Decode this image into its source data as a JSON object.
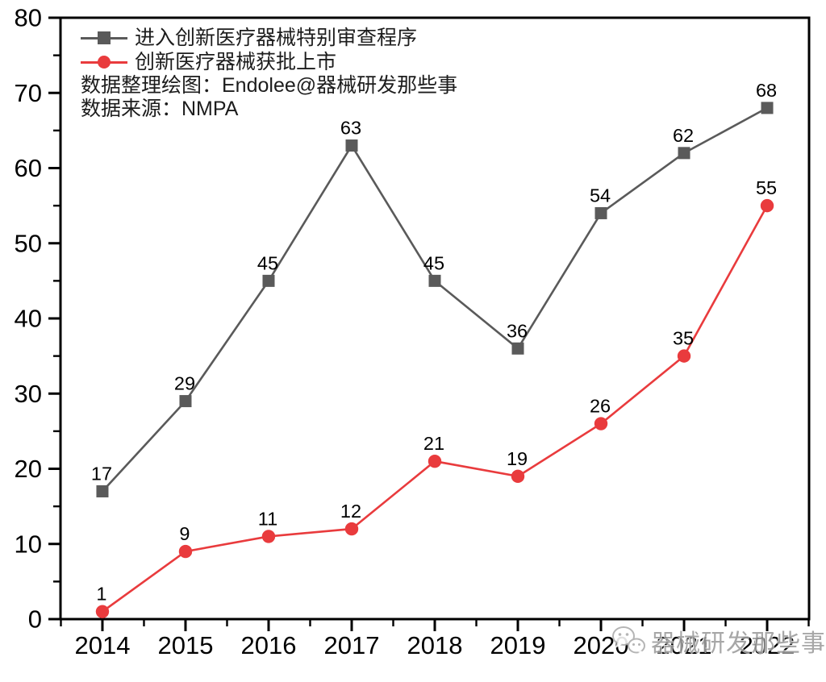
{
  "chart_data": {
    "type": "line",
    "x": [
      "2014",
      "2015",
      "2016",
      "2017",
      "2018",
      "2019",
      "2020",
      "2021",
      "2022"
    ],
    "series": [
      {
        "name": "进入创新医疗器械特别审查程序",
        "color": "#5a5a5a",
        "marker": "square",
        "values": [
          17,
          29,
          45,
          63,
          45,
          36,
          54,
          62,
          68
        ]
      },
      {
        "name": "创新医疗器械获批上市",
        "color": "#e93b3d",
        "marker": "circle",
        "values": [
          1,
          9,
          11,
          12,
          21,
          19,
          26,
          35,
          55
        ]
      }
    ],
    "title": "",
    "xlabel": "",
    "ylabel": "",
    "ylim": [
      0,
      80
    ],
    "y_major_step": 10,
    "y_minor_step": 5,
    "grid": false,
    "frame": "full-box",
    "legend_position": "top-left-inside",
    "point_labels": true,
    "axis_color": "#000000",
    "tick_label_color": "#000000",
    "point_label_color": "#000000",
    "annotations": [
      "数据整理绘图：Endolee@器械研发那些事",
      "数据来源：NMPA"
    ],
    "watermark": {
      "icon": "wechat-icon",
      "text": "器械研发那些事"
    }
  }
}
